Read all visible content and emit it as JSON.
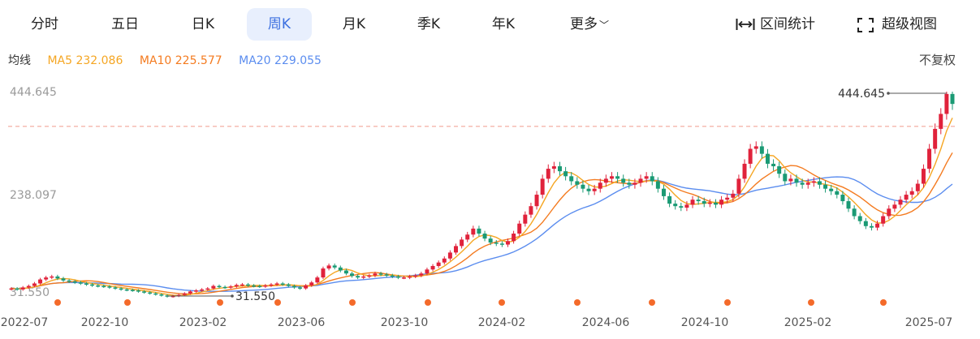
{
  "tabs": [
    {
      "label": "分时",
      "active": false
    },
    {
      "label": "五日",
      "active": false
    },
    {
      "label": "日K",
      "active": false
    },
    {
      "label": "周K",
      "active": true
    },
    {
      "label": "月K",
      "active": false
    },
    {
      "label": "季K",
      "active": false
    },
    {
      "label": "年K",
      "active": false
    },
    {
      "label": "更多",
      "active": false
    }
  ],
  "tools": {
    "range_stats": "区间统计",
    "super_view": "超级视图"
  },
  "legend": {
    "prefix": "均线",
    "ma5": "MA5 232.086",
    "ma10": "MA10 225.577",
    "ma20": "MA20 229.055"
  },
  "adjust_label": "不复权",
  "colors": {
    "up": "#e0223b",
    "down": "#1a9a74",
    "ma5": "#f5a623",
    "ma10": "#f47b20",
    "ma20": "#5b8def",
    "dashed": "#f4a59a"
  },
  "chart_data": {
    "type": "candlestick",
    "y_range": [
      31.55,
      444.645
    ],
    "y_tick_labels": [
      "444.645",
      "238.097",
      "31.550"
    ],
    "max_label": "444.645",
    "min_label": "31.550",
    "dashed_level": 375,
    "x_tick_labels": [
      "2022-07",
      "2022-10",
      "2023-02",
      "2023-06",
      "2023-10",
      "2024-02",
      "2024-06",
      "2024-10",
      "2025-02",
      "2025-07"
    ],
    "close": [
      50,
      48,
      52,
      55,
      60,
      68,
      72,
      74,
      70,
      66,
      64,
      62,
      60,
      58,
      56,
      55,
      54,
      52,
      50,
      48,
      47,
      46,
      44,
      42,
      40,
      38,
      36,
      34,
      35,
      37,
      40,
      44,
      46,
      48,
      50,
      55,
      53,
      52,
      54,
      57,
      58,
      56,
      55,
      54,
      56,
      58,
      60,
      58,
      55,
      52,
      50,
      56,
      62,
      72,
      90,
      96,
      92,
      86,
      80,
      75,
      72,
      74,
      76,
      80,
      78,
      76,
      74,
      72,
      72,
      74,
      76,
      80,
      88,
      95,
      102,
      110,
      122,
      135,
      148,
      158,
      170,
      160,
      150,
      142,
      140,
      138,
      145,
      160,
      180,
      198,
      215,
      238,
      270,
      290,
      295,
      285,
      275,
      265,
      258,
      250,
      245,
      250,
      262,
      270,
      275,
      270,
      262,
      258,
      262,
      270,
      275,
      265,
      250,
      235,
      220,
      215,
      212,
      218,
      228,
      225,
      220,
      222,
      218,
      228,
      232,
      240,
      270,
      300,
      330,
      335,
      320,
      300,
      295,
      280,
      265,
      270,
      262,
      258,
      262,
      265,
      258,
      250,
      245,
      238,
      225,
      210,
      195,
      185,
      175,
      172,
      180,
      195,
      210,
      218,
      228,
      238,
      245,
      260,
      290,
      330,
      370,
      400,
      440,
      420
    ]
  }
}
